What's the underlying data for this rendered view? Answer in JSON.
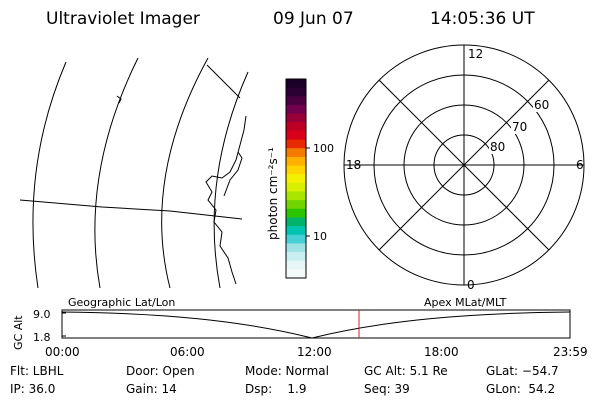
{
  "header": {
    "title": "Ultraviolet Imager",
    "date": "09 Jun 07",
    "time": "14:05:36 UT"
  },
  "colorbar": {
    "unit_label": "photon cm⁻²s⁻¹",
    "tick_labels": [
      "100",
      "10"
    ],
    "colors": [
      "#1a0026",
      "#2b0033",
      "#4a0040",
      "#72004f",
      "#99003a",
      "#bf0022",
      "#d9001a",
      "#e82a00",
      "#f57a00",
      "#ffb000",
      "#ffd400",
      "#f3f000",
      "#d8f000",
      "#a8e600",
      "#6fd400",
      "#2bc400",
      "#00b46a",
      "#00c4b0",
      "#46d0d6",
      "#9ee2e6",
      "#c8eef0",
      "#e6f6f6",
      "#f4fafa"
    ]
  },
  "polar_plot": {
    "mlt_labels": {
      "top": "12",
      "left": "18",
      "right": "6",
      "bottom": "0"
    },
    "lat_labels": [
      "60",
      "70",
      "80"
    ]
  },
  "timeline": {
    "left_label": "Geographic Lat/Lon",
    "right_label": "Apex MLat/MLT",
    "axis_label": "GC Alt",
    "y_ticks": [
      "9.0",
      "1.8"
    ],
    "x_ticks": [
      "00:00",
      "06:00",
      "12:00",
      "18:00",
      "23:59"
    ]
  },
  "info": {
    "filter": "Flt: LBHL",
    "ip": "IP: 36.0",
    "door": "Door: Open",
    "gain": "Gain: 14",
    "mode": "Mode: Normal",
    "dsp": "Dsp:    1.9",
    "gc_alt": "GC Alt: 5.1 Re",
    "seq": "Seq: 39",
    "glat": "GLat: −54.7",
    "glon": "GLon:  54.2"
  }
}
